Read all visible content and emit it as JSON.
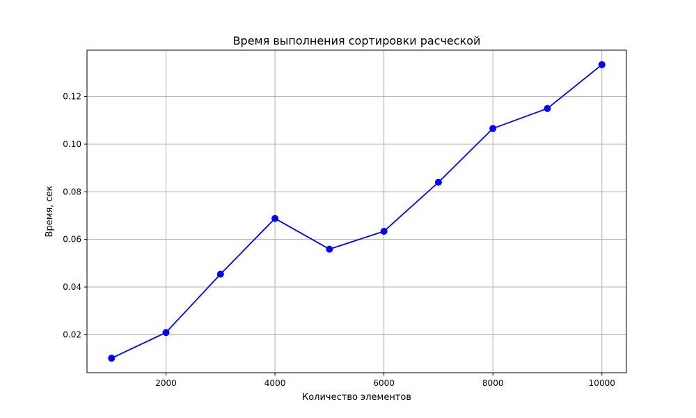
{
  "chart_data": {
    "type": "line",
    "title": "Время выполнения сортировки расческой",
    "xlabel": "Количество элементов",
    "ylabel": "Время, сек",
    "x": [
      1000,
      2000,
      3000,
      4000,
      5000,
      6000,
      7000,
      8000,
      9000,
      10000
    ],
    "series": [
      {
        "values": [
          0.0101,
          0.0209,
          0.0454,
          0.0688,
          0.0559,
          0.0634,
          0.084,
          0.1066,
          0.115,
          0.1334
        ]
      }
    ],
    "xlim": [
      550,
      10450
    ],
    "ylim": [
      0.004,
      0.1395
    ],
    "xticks": [
      2000,
      4000,
      6000,
      8000,
      10000
    ],
    "xtick_labels": [
      "2000",
      "4000",
      "6000",
      "8000",
      "10000"
    ],
    "yticks": [
      0.02,
      0.04,
      0.06,
      0.08,
      0.1,
      0.12
    ],
    "ytick_labels": [
      "0.02",
      "0.04",
      "0.06",
      "0.08",
      "0.10",
      "0.12"
    ],
    "grid": true,
    "colors": {
      "line": "#0000ff",
      "marker": "#0000ff",
      "grid": "#b0b0b0",
      "axes": "#000000"
    }
  }
}
